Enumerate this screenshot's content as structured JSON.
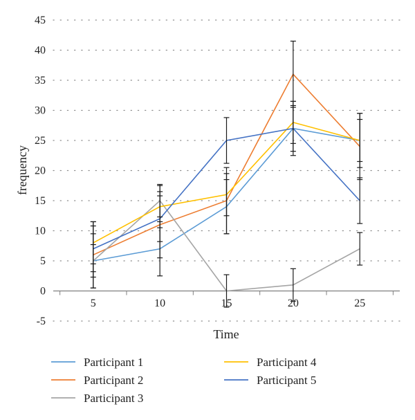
{
  "chart_data": {
    "type": "line",
    "xlabel": "Time",
    "ylabel": "frequency",
    "x": [
      5,
      10,
      15,
      20,
      25
    ],
    "xlim": [
      2,
      28
    ],
    "ylim": [
      -5,
      45
    ],
    "yticks": [
      -5,
      0,
      5,
      10,
      15,
      20,
      25,
      30,
      35,
      40,
      45
    ],
    "xticks": [
      5,
      10,
      15,
      20,
      25
    ],
    "grid": "dotted horizontal",
    "legend_position": "bottom",
    "series": [
      {
        "name": "Participant 1",
        "color": "#5b9bd5",
        "values": [
          5,
          7,
          14,
          27,
          25
        ],
        "errors": [
          4.5,
          4.5,
          4.5,
          4.5,
          4.5
        ]
      },
      {
        "name": "Participant 2",
        "color": "#ed7d31",
        "values": [
          6,
          11,
          15,
          36,
          24
        ],
        "errors": [
          5.5,
          5.5,
          5.5,
          5.5,
          5.5
        ]
      },
      {
        "name": "Participant 3",
        "color": "#a5a5a5",
        "values": [
          5,
          15,
          0,
          1,
          7
        ],
        "errors": [
          2.7,
          2.7,
          2.7,
          2.7,
          2.7
        ]
      },
      {
        "name": "Participant 4",
        "color": "#ffc000",
        "values": [
          8,
          14,
          16,
          28,
          25
        ],
        "errors": [
          3.5,
          3.5,
          3.5,
          3.5,
          3.5
        ]
      },
      {
        "name": "Participant 5",
        "color": "#4472c4",
        "values": [
          7,
          12,
          25,
          27,
          15
        ],
        "errors": [
          3.8,
          3.8,
          3.8,
          3.8,
          3.8
        ]
      }
    ]
  }
}
